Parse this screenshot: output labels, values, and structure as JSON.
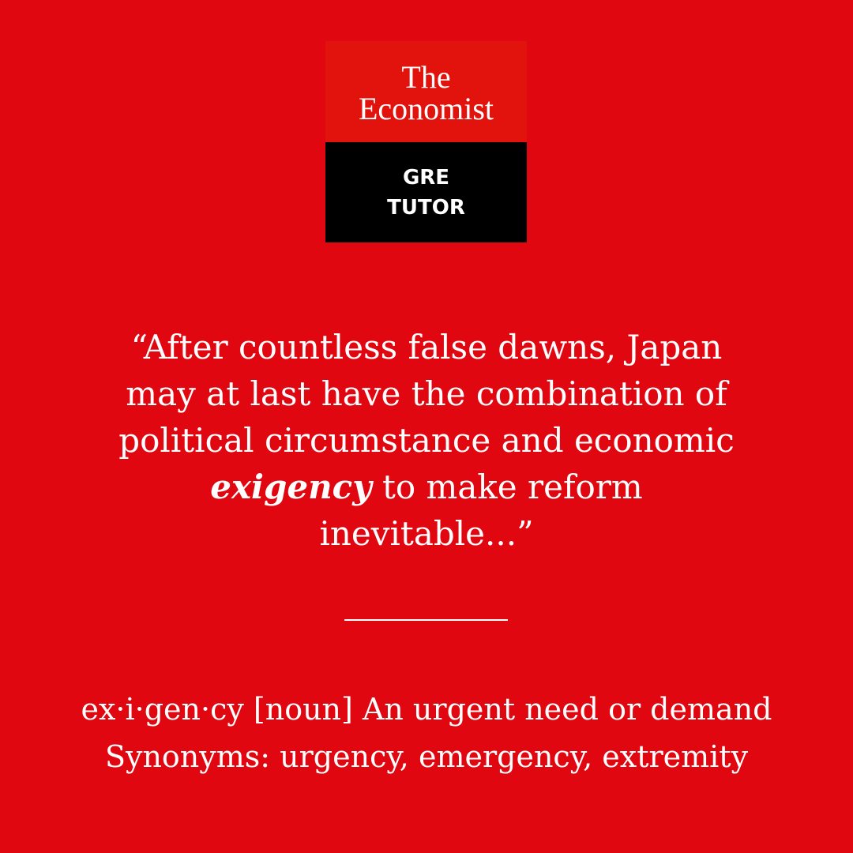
{
  "logo": {
    "brand_line1": "The",
    "brand_line2": "Economist",
    "sub_line1": "GRE",
    "sub_line2": "TUTOR"
  },
  "quote": {
    "line1": "“After countless false dawns, Japan",
    "line2": "may at last have the combination of",
    "line3": "political circumstance and economic",
    "line4_emphasis": "exigency",
    "line4_rest": " to make reform",
    "line5": "inevitable...”"
  },
  "definition": {
    "entry": "ex·i·gen·cy [noun] An urgent need or demand",
    "synonyms": "Synonyms: urgency, emergency, extremity"
  },
  "colors": {
    "background": "#e10711",
    "logo_red": "#e2130c",
    "logo_black": "#000000",
    "text": "#ffffff"
  }
}
